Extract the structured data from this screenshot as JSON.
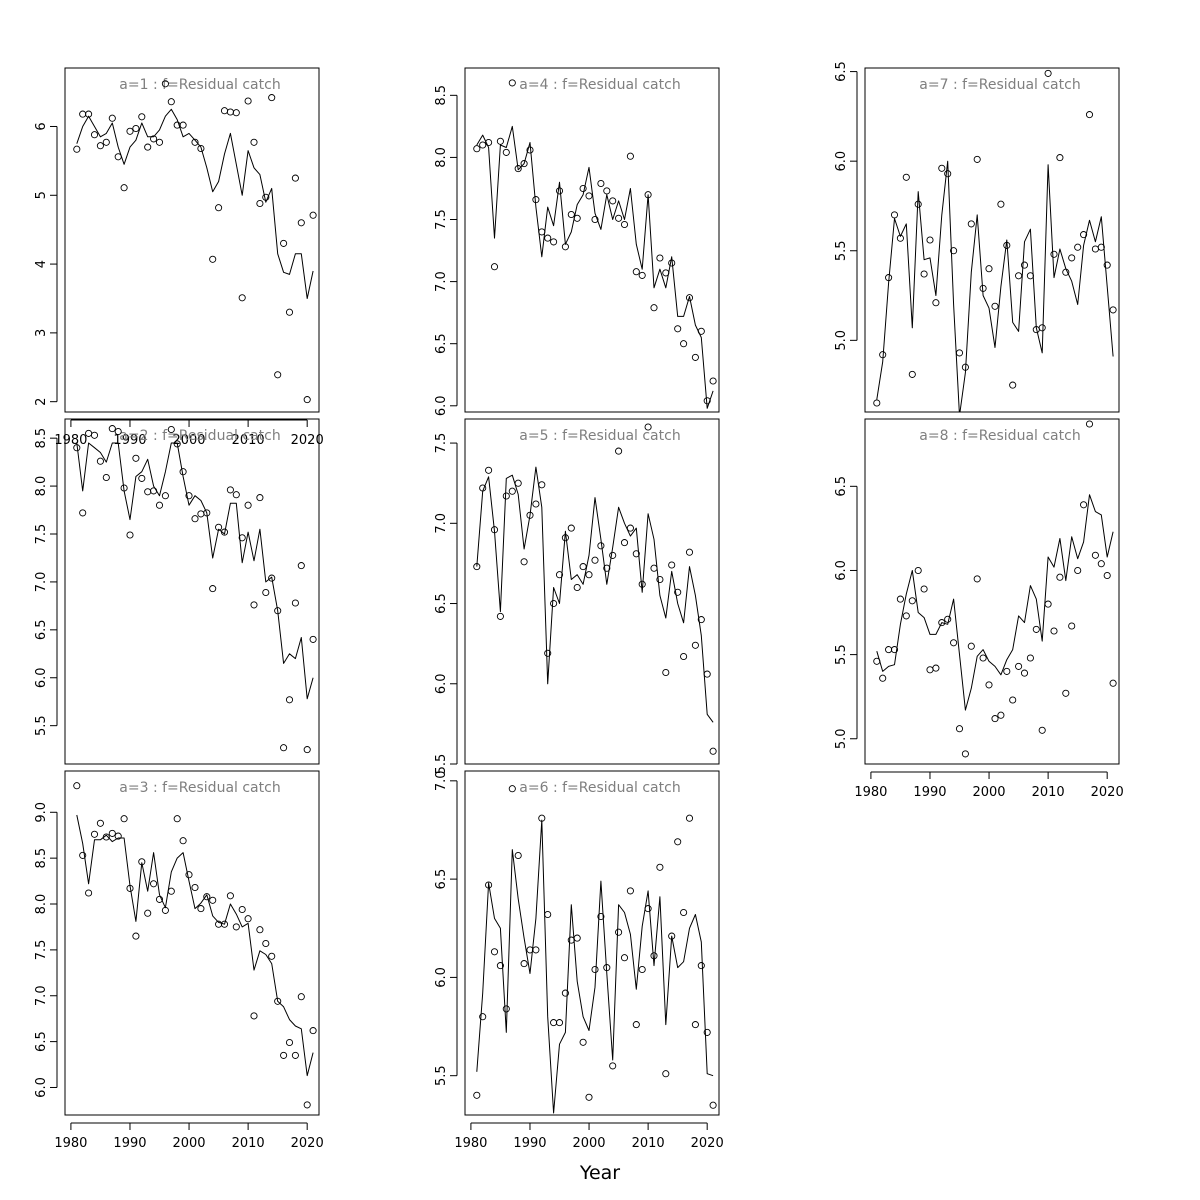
{
  "figure": {
    "xlabel": "Year",
    "panel_title_template": "a={a}  :  f=Residual catch"
  },
  "chart_data": [
    {
      "type": "scatter",
      "title": "a=1  :  f=Residual catch",
      "xlim": [
        1979,
        2022
      ],
      "ylim": [
        1.85,
        6.85
      ],
      "xticks": [
        1980,
        1990,
        2000,
        2010,
        2020
      ],
      "yticks": [
        2,
        3,
        4,
        5,
        6
      ],
      "x_start": 1981,
      "series": [
        {
          "kind": "points",
          "values": [
            5.67,
            6.18,
            6.18,
            5.88,
            5.72,
            5.77,
            6.12,
            5.56,
            5.11,
            5.93,
            5.97,
            6.14,
            5.7,
            5.82,
            5.77,
            6.62,
            6.36,
            6.02,
            6.02,
            null,
            5.77,
            5.68,
            null,
            4.07,
            4.82,
            6.23,
            6.21,
            6.2,
            3.51,
            6.37,
            5.77,
            4.88,
            4.97,
            6.42,
            2.39,
            4.3,
            3.3,
            5.25,
            4.6,
            2.03,
            4.71
          ]
        },
        {
          "kind": "line",
          "values": [
            5.75,
            6.0,
            6.15,
            6.0,
            5.85,
            5.9,
            6.05,
            5.7,
            5.45,
            5.7,
            5.8,
            6.05,
            5.85,
            5.85,
            5.95,
            6.15,
            6.25,
            6.1,
            5.85,
            5.9,
            5.8,
            5.7,
            5.4,
            5.05,
            5.2,
            5.6,
            5.9,
            5.45,
            5.0,
            5.65,
            5.4,
            5.3,
            4.9,
            5.1,
            4.15,
            3.88,
            3.85,
            4.15,
            4.15,
            3.5,
            3.9
          ]
        }
      ]
    },
    {
      "type": "scatter",
      "title": "a=2  :  f=Residual catch",
      "xlim": [
        1979,
        2022
      ],
      "ylim": [
        5.1,
        8.7
      ],
      "xticks": [],
      "yticks": [
        5.5,
        6.0,
        6.5,
        7.0,
        7.5,
        8.0,
        8.5
      ],
      "x_start": 1981,
      "series": [
        {
          "kind": "points",
          "values": [
            8.4,
            7.72,
            8.55,
            8.53,
            8.26,
            8.09,
            8.6,
            8.57,
            7.98,
            7.49,
            8.29,
            8.08,
            7.94,
            7.95,
            7.8,
            7.9,
            8.59,
            8.44,
            8.15,
            7.9,
            7.66,
            7.71,
            7.72,
            6.93,
            7.57,
            7.52,
            7.96,
            7.91,
            7.46,
            7.8,
            6.76,
            7.88,
            6.89,
            7.04,
            6.7,
            5.27,
            5.77,
            6.78,
            7.17,
            5.25,
            6.4
          ]
        },
        {
          "kind": "line",
          "values": [
            8.45,
            7.95,
            8.45,
            8.4,
            8.35,
            8.25,
            8.45,
            8.45,
            7.95,
            7.65,
            8.1,
            8.15,
            8.28,
            8.0,
            7.9,
            8.15,
            8.45,
            8.45,
            8.1,
            7.8,
            7.9,
            7.85,
            7.72,
            7.25,
            7.55,
            7.5,
            7.82,
            7.82,
            7.2,
            7.52,
            7.22,
            7.55,
            7.0,
            7.05,
            6.7,
            6.15,
            6.25,
            6.2,
            6.42,
            5.78,
            6.0
          ]
        }
      ]
    },
    {
      "type": "scatter",
      "title": "a=3  :  f=Residual catch",
      "xlim": [
        1979,
        2022
      ],
      "ylim": [
        5.7,
        9.45
      ],
      "xticks": [
        1980,
        1990,
        2000,
        2010,
        2020
      ],
      "yticks": [
        6.0,
        6.5,
        7.0,
        7.5,
        8.0,
        8.5,
        9.0
      ],
      "x_start": 1981,
      "series": [
        {
          "kind": "points",
          "values": [
            9.29,
            8.53,
            8.12,
            8.76,
            8.88,
            8.73,
            8.77,
            8.74,
            8.93,
            8.17,
            7.65,
            8.46,
            7.9,
            8.22,
            8.05,
            7.93,
            8.14,
            8.93,
            8.69,
            8.32,
            8.18,
            7.95,
            8.08,
            8.04,
            7.78,
            7.78,
            8.09,
            7.75,
            7.94,
            7.84,
            6.78,
            7.72,
            7.57,
            7.43,
            6.94,
            6.35,
            6.49,
            6.35,
            6.99,
            5.81,
            6.62
          ]
        },
        {
          "kind": "line",
          "values": [
            8.97,
            8.66,
            8.22,
            8.7,
            8.7,
            8.75,
            8.68,
            8.72,
            8.72,
            8.2,
            7.81,
            8.45,
            8.14,
            8.56,
            8.1,
            7.96,
            8.35,
            8.5,
            8.56,
            8.25,
            7.95,
            8.01,
            8.1,
            7.87,
            7.8,
            7.78,
            8.0,
            7.89,
            7.75,
            7.79,
            7.28,
            7.49,
            7.45,
            7.35,
            6.94,
            6.88,
            6.74,
            6.67,
            6.64,
            6.13,
            6.38
          ]
        }
      ]
    },
    {
      "type": "scatter",
      "title": "a=4  :  f=Residual catch",
      "xlim": [
        1979,
        2022
      ],
      "ylim": [
        5.95,
        8.72
      ],
      "xticks": [],
      "yticks": [
        6.0,
        6.5,
        7.0,
        7.5,
        8.0,
        8.5
      ],
      "x_start": 1981,
      "series": [
        {
          "kind": "points",
          "values": [
            8.07,
            8.1,
            8.12,
            7.12,
            8.13,
            8.04,
            8.6,
            7.91,
            7.95,
            8.06,
            7.66,
            7.4,
            7.35,
            7.32,
            7.73,
            7.28,
            7.54,
            7.51,
            7.75,
            7.69,
            7.5,
            7.79,
            7.73,
            7.65,
            7.51,
            7.46,
            8.01,
            7.08,
            7.05,
            7.7,
            6.79,
            7.19,
            7.07,
            7.15,
            6.62,
            6.5,
            6.87,
            6.39,
            6.6,
            6.04,
            6.2
          ]
        },
        {
          "kind": "line",
          "values": [
            8.1,
            8.18,
            8.08,
            7.35,
            8.1,
            8.08,
            8.25,
            7.9,
            7.95,
            8.12,
            7.6,
            7.2,
            7.6,
            7.45,
            7.8,
            7.3,
            7.4,
            7.62,
            7.7,
            7.92,
            7.55,
            7.42,
            7.7,
            7.5,
            7.65,
            7.5,
            7.75,
            7.3,
            7.1,
            7.7,
            6.95,
            7.1,
            6.95,
            7.2,
            6.72,
            6.72,
            6.88,
            6.65,
            6.55,
            5.98,
            6.12
          ]
        }
      ]
    },
    {
      "type": "scatter",
      "title": "a=5  :  f=Residual catch",
      "xlim": [
        1979,
        2022
      ],
      "ylim": [
        5.5,
        7.65
      ],
      "xticks": [],
      "yticks": [
        5.5,
        6.0,
        6.5,
        7.0,
        7.5
      ],
      "x_start": 1981,
      "series": [
        {
          "kind": "points",
          "values": [
            6.73,
            7.22,
            7.33,
            6.96,
            6.42,
            7.17,
            7.2,
            7.25,
            6.76,
            7.05,
            7.12,
            7.24,
            6.19,
            6.5,
            6.68,
            6.91,
            6.97,
            6.6,
            6.73,
            6.68,
            6.77,
            6.86,
            6.72,
            6.8,
            7.45,
            6.88,
            6.97,
            6.81,
            6.62,
            7.6,
            6.72,
            6.65,
            6.07,
            6.74,
            6.57,
            6.17,
            6.82,
            6.24,
            6.4,
            6.06,
            5.58
          ]
        },
        {
          "kind": "line",
          "values": [
            6.73,
            7.2,
            7.29,
            6.95,
            6.45,
            7.28,
            7.3,
            7.18,
            6.84,
            7.05,
            7.35,
            7.1,
            6.0,
            6.6,
            6.5,
            6.95,
            6.65,
            6.68,
            6.62,
            6.8,
            7.16,
            6.9,
            6.62,
            6.85,
            7.1,
            7.0,
            6.92,
            6.97,
            6.57,
            7.06,
            6.9,
            6.55,
            6.41,
            6.7,
            6.5,
            6.38,
            6.73,
            6.55,
            6.3,
            5.81,
            5.76
          ]
        }
      ]
    },
    {
      "type": "scatter",
      "title": "a=6  :  f=Residual catch",
      "xlim": [
        1979,
        2022
      ],
      "ylim": [
        5.3,
        7.05
      ],
      "xticks": [
        1980,
        1990,
        2000,
        2010,
        2020
      ],
      "yticks": [
        5.5,
        6.0,
        6.5,
        7.0
      ],
      "x_start": 1981,
      "series": [
        {
          "kind": "points",
          "values": [
            5.4,
            5.8,
            6.47,
            6.13,
            6.06,
            5.84,
            6.96,
            6.62,
            6.07,
            6.14,
            6.14,
            6.81,
            6.32,
            5.77,
            5.77,
            5.92,
            6.19,
            6.2,
            5.67,
            5.39,
            6.04,
            6.31,
            6.05,
            5.55,
            6.23,
            6.1,
            6.44,
            5.76,
            6.04,
            6.35,
            6.11,
            6.56,
            5.51,
            6.21,
            6.69,
            6.33,
            6.81,
            5.76,
            6.06,
            5.72,
            5.35
          ]
        },
        {
          "kind": "line",
          "values": [
            5.52,
            5.92,
            6.48,
            6.3,
            6.25,
            5.72,
            6.65,
            6.4,
            6.2,
            6.02,
            6.3,
            6.8,
            5.8,
            5.31,
            5.66,
            5.72,
            6.37,
            5.98,
            5.8,
            5.73,
            5.95,
            6.49,
            6.02,
            5.58,
            6.37,
            6.33,
            6.22,
            5.94,
            6.26,
            6.44,
            6.06,
            6.41,
            5.76,
            6.21,
            6.05,
            6.08,
            6.25,
            6.32,
            6.18,
            5.51,
            5.5
          ]
        }
      ]
    },
    {
      "type": "scatter",
      "title": "a=7  :  f=Residual catch",
      "xlim": [
        1979,
        2022
      ],
      "ylim": [
        4.6,
        6.52
      ],
      "xticks": [],
      "yticks": [
        5.0,
        5.5,
        6.0,
        6.5
      ],
      "x_start": 1981,
      "series": [
        {
          "kind": "points",
          "values": [
            4.65,
            4.92,
            5.35,
            5.7,
            5.57,
            5.91,
            4.81,
            5.76,
            5.37,
            5.56,
            5.21,
            5.96,
            5.93,
            5.5,
            4.93,
            4.85,
            5.65,
            6.01,
            5.29,
            5.4,
            5.19,
            5.76,
            5.53,
            4.75,
            5.36,
            5.42,
            5.36,
            5.06,
            5.07,
            6.49,
            5.48,
            6.02,
            5.38,
            5.46,
            5.52,
            5.59,
            6.26,
            5.51,
            5.52,
            5.42,
            5.17
          ]
        },
        {
          "kind": "line",
          "values": [
            4.67,
            4.88,
            5.32,
            5.68,
            5.58,
            5.65,
            5.07,
            5.83,
            5.45,
            5.46,
            5.25,
            5.7,
            6.0,
            5.2,
            4.58,
            4.82,
            5.38,
            5.7,
            5.25,
            5.18,
            4.96,
            5.3,
            5.56,
            5.1,
            5.05,
            5.55,
            5.62,
            5.07,
            4.93,
            5.98,
            5.35,
            5.51,
            5.4,
            5.33,
            5.2,
            5.53,
            5.67,
            5.55,
            5.69,
            5.3,
            4.91
          ]
        }
      ]
    },
    {
      "type": "scatter",
      "title": "a=8  :  f=Residual catch",
      "xlim": [
        1979,
        2022
      ],
      "ylim": [
        4.85,
        6.9
      ],
      "xticks": [
        1980,
        1990,
        2000,
        2010,
        2020
      ],
      "yticks": [
        5.0,
        5.5,
        6.0,
        6.5
      ],
      "x_start": 1981,
      "series": [
        {
          "kind": "points",
          "values": [
            5.46,
            5.36,
            5.53,
            5.53,
            5.83,
            5.73,
            5.82,
            6.0,
            5.89,
            5.41,
            5.42,
            5.69,
            5.71,
            5.57,
            5.06,
            4.91,
            5.55,
            5.95,
            5.48,
            5.32,
            5.12,
            5.14,
            5.4,
            5.23,
            5.43,
            5.39,
            5.48,
            5.65,
            5.05,
            5.8,
            5.64,
            5.96,
            5.27,
            5.67,
            6.0,
            6.39,
            6.87,
            6.09,
            6.04,
            5.97,
            5.33
          ]
        },
        {
          "kind": "line",
          "values": [
            5.52,
            5.4,
            5.43,
            5.44,
            5.68,
            5.86,
            6.0,
            5.75,
            5.72,
            5.62,
            5.62,
            5.69,
            5.68,
            5.83,
            5.5,
            5.17,
            5.3,
            5.49,
            5.53,
            5.46,
            5.43,
            5.38,
            5.47,
            5.53,
            5.73,
            5.69,
            5.91,
            5.83,
            5.58,
            6.08,
            6.02,
            6.19,
            5.94,
            6.2,
            6.07,
            6.17,
            6.45,
            6.35,
            6.33,
            6.08,
            6.23
          ]
        }
      ]
    }
  ]
}
